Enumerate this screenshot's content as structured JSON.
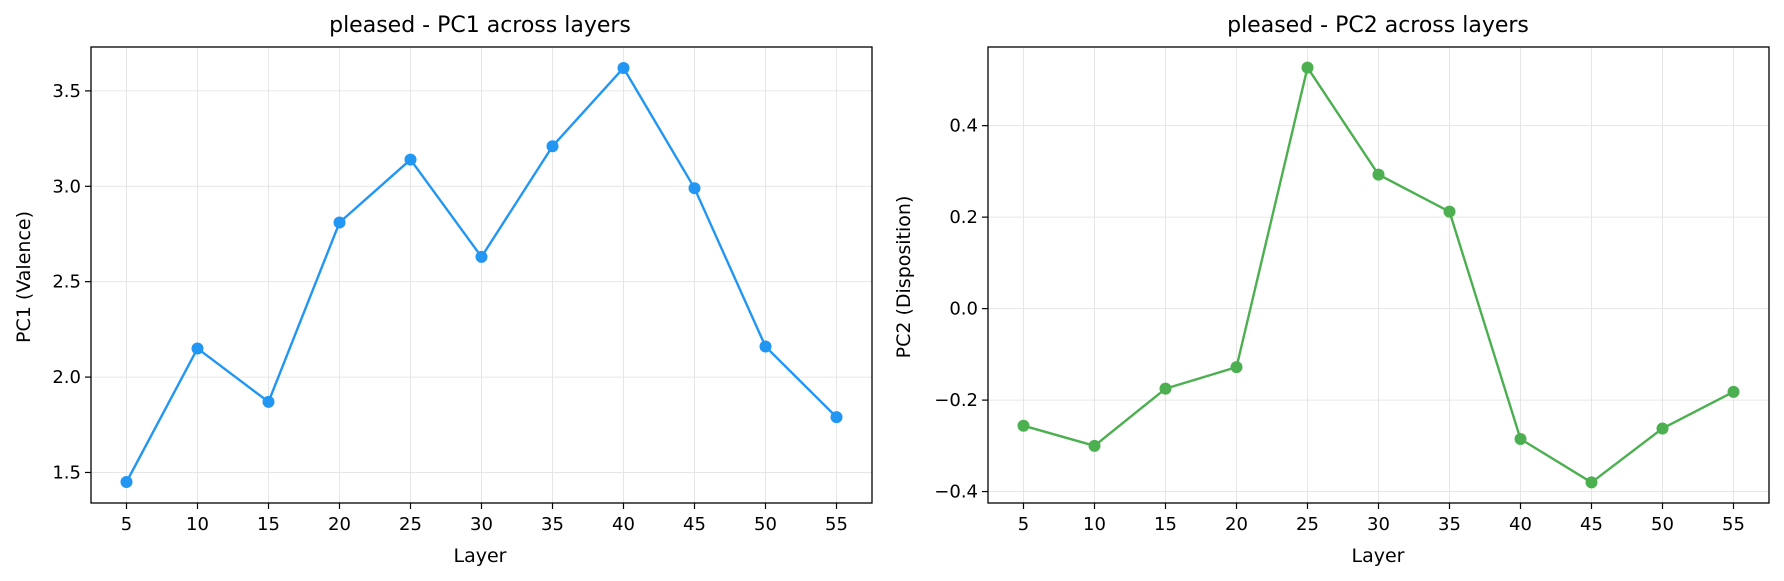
{
  "chart_data": [
    {
      "type": "line",
      "title": "pleased - PC1 across layers",
      "xlabel": "Layer",
      "ylabel": "PC1 (Valence)",
      "x": [
        5,
        10,
        15,
        20,
        25,
        30,
        35,
        40,
        45,
        50,
        55
      ],
      "series": [
        {
          "values": [
            1.45,
            2.15,
            1.87,
            2.81,
            3.14,
            2.63,
            3.21,
            3.62,
            2.99,
            2.16,
            1.79
          ],
          "color": "#2196F3"
        }
      ],
      "xticks": [
        5,
        10,
        15,
        20,
        25,
        30,
        35,
        40,
        45,
        50,
        55
      ],
      "yticks": [
        1.5,
        2.0,
        2.5,
        3.0,
        3.5
      ],
      "ytick_labels": [
        "1.5",
        "2.0",
        "2.5",
        "3.0",
        "3.5"
      ],
      "xlim": [
        2.5,
        57.5
      ],
      "ylim": [
        1.34,
        3.73
      ],
      "grid": true
    },
    {
      "type": "line",
      "title": "pleased - PC2 across layers",
      "xlabel": "Layer",
      "ylabel": "PC2 (Disposition)",
      "x": [
        5,
        10,
        15,
        20,
        25,
        30,
        35,
        40,
        45,
        50,
        55
      ],
      "series": [
        {
          "values": [
            -0.256,
            -0.3,
            -0.175,
            -0.128,
            0.527,
            0.293,
            0.212,
            -0.285,
            -0.38,
            -0.262,
            -0.182
          ],
          "color": "#4CAF50"
        }
      ],
      "xticks": [
        5,
        10,
        15,
        20,
        25,
        30,
        35,
        40,
        45,
        50,
        55
      ],
      "yticks": [
        -0.4,
        -0.2,
        0.0,
        0.2,
        0.4
      ],
      "ytick_labels": [
        "−0.4",
        "−0.2",
        "0.0",
        "0.2",
        "0.4"
      ],
      "xlim": [
        2.5,
        57.5
      ],
      "ylim": [
        -0.425,
        0.572
      ],
      "grid": true
    }
  ]
}
